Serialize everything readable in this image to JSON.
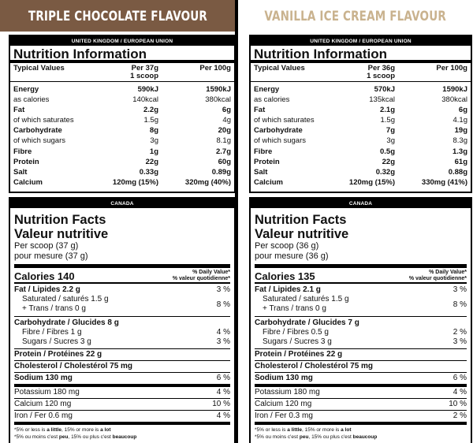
{
  "panels": [
    {
      "flavour": "TRIPLE CHOCOLATE FLAVOUR",
      "uk": {
        "region": "UNITED KINGDOM / EUROPEAN UNION",
        "title": "Nutrition Information",
        "head_label": "Typical Values",
        "head_serv_1": "Per 37g",
        "head_serv_2": "1 scoop",
        "head_100": "Per 100g",
        "rows": [
          {
            "label": "Energy",
            "serv": "590kJ",
            "per100": "1590kJ"
          },
          {
            "label": "as calories",
            "serv": "140kcal",
            "per100": "380kcal"
          },
          {
            "label": "Fat",
            "serv": "2.2g",
            "per100": "6g"
          },
          {
            "label": "of which saturates",
            "serv": "1.5g",
            "per100": "4g"
          },
          {
            "label": "Carbohydrate",
            "serv": "8g",
            "per100": "20g"
          },
          {
            "label": "of which sugars",
            "serv": "3g",
            "per100": "8.1g"
          },
          {
            "label": "Fibre",
            "serv": "1g",
            "per100": "2.7g"
          },
          {
            "label": "Protein",
            "serv": "22g",
            "per100": "60g"
          },
          {
            "label": "Salt",
            "serv": "0.33g",
            "per100": "0.89g"
          },
          {
            "label": "Calcium",
            "serv": "120mg (15%)",
            "per100": "320mg (40%)"
          }
        ]
      },
      "ca": {
        "region": "CANADA",
        "title_en": "Nutrition Facts",
        "title_fr": "Valeur nutritive",
        "serving_en": "Per scoop (37 g)",
        "serving_fr": "pour mesure (37 g)",
        "calories": "Calories 140",
        "dv_en": "% Daily Value*",
        "dv_fr": "% valeur quotidienne*",
        "fat": "Fat / Lipides 2.2 g",
        "fat_pct": "3 %",
        "sat": "Saturated / saturés 1.5 g",
        "trans": "+ Trans / trans 0 g",
        "sat_trans_pct": "8 %",
        "carb": "Carbohydrate / Glucides 8 g",
        "fibre": "Fibre / Fibres 1 g",
        "fibre_pct": "4 %",
        "sugars": "Sugars / Sucres 3 g",
        "sugars_pct": "3 %",
        "protein": "Protein / Protéines 22 g",
        "cholesterol": "Cholesterol / Cholestérol 75 mg",
        "sodium": "Sodium 130 mg",
        "sodium_pct": "6 %",
        "potassium": "Potassium 180 mg",
        "potassium_pct": "4 %",
        "calcium": "Calcium 120 mg",
        "calcium_pct": "10 %",
        "iron": "Iron / Fer 0.6 mg",
        "iron_pct": "4 %",
        "foot_en_1": "*5% or less is ",
        "foot_en_2": "a little",
        "foot_en_3": ", 15% or more is ",
        "foot_en_4": "a lot",
        "foot_fr_1": "*5% ou moins c'est ",
        "foot_fr_2": "peu",
        "foot_fr_3": ", 15% ou plus c'est ",
        "foot_fr_4": "beaucoup"
      }
    },
    {
      "flavour": "VANILLA ICE CREAM FLAVOUR",
      "uk": {
        "region": "UNITED KINGDOM / EUROPEAN UNION",
        "title": "Nutrition Information",
        "head_label": "Typical Values",
        "head_serv_1": "Per 36g",
        "head_serv_2": "1 scoop",
        "head_100": "Per 100g",
        "rows": [
          {
            "label": "Energy",
            "serv": "570kJ",
            "per100": "1590kJ"
          },
          {
            "label": "as calories",
            "serv": "135kcal",
            "per100": "380kcal"
          },
          {
            "label": "Fat",
            "serv": "2.1g",
            "per100": "6g"
          },
          {
            "label": "of which saturates",
            "serv": "1.5g",
            "per100": "4.1g"
          },
          {
            "label": "Carbohydrate",
            "serv": "7g",
            "per100": "19g"
          },
          {
            "label": "of which sugars",
            "serv": "3g",
            "per100": "8.3g"
          },
          {
            "label": "Fibre",
            "serv": "0.5g",
            "per100": "1.3g"
          },
          {
            "label": "Protein",
            "serv": "22g",
            "per100": "61g"
          },
          {
            "label": "Salt",
            "serv": "0.32g",
            "per100": "0.88g"
          },
          {
            "label": "Calcium",
            "serv": "120mg (15%)",
            "per100": "330mg (41%)"
          }
        ]
      },
      "ca": {
        "region": "CANADA",
        "title_en": "Nutrition Facts",
        "title_fr": "Valeur nutritive",
        "serving_en": "Per scoop (36 g)",
        "serving_fr": "pour mesure (36 g)",
        "calories": "Calories 135",
        "dv_en": "% Daily Value*",
        "dv_fr": "% valeur quotidienne*",
        "fat": "Fat / Lipides 2.1 g",
        "fat_pct": "3 %",
        "sat": "Saturated / saturés 1.5 g",
        "trans": "+ Trans / trans 0 g",
        "sat_trans_pct": "8 %",
        "carb": "Carbohydrate / Glucides 7 g",
        "fibre": "Fibre / Fibres 0.5 g",
        "fibre_pct": "2 %",
        "sugars": "Sugars / Sucres 3 g",
        "sugars_pct": "3 %",
        "protein": "Protein / Protéines 22 g",
        "cholesterol": "Cholesterol / Cholestérol 75 mg",
        "sodium": "Sodium 130 mg",
        "sodium_pct": "6 %",
        "potassium": "Potassium 180 mg",
        "potassium_pct": "4 %",
        "calcium": "Calcium 120 mg",
        "calcium_pct": "10 %",
        "iron": "Iron / Fer 0.3 mg",
        "iron_pct": "2 %",
        "foot_en_1": "*5% or less is ",
        "foot_en_2": "a little",
        "foot_en_3": ", 15% or more is ",
        "foot_en_4": "a lot",
        "foot_fr_1": "*5% ou moins c'est ",
        "foot_fr_2": "peu",
        "foot_fr_3": ", 15% ou plus c'est ",
        "foot_fr_4": "beaucoup"
      }
    }
  ]
}
